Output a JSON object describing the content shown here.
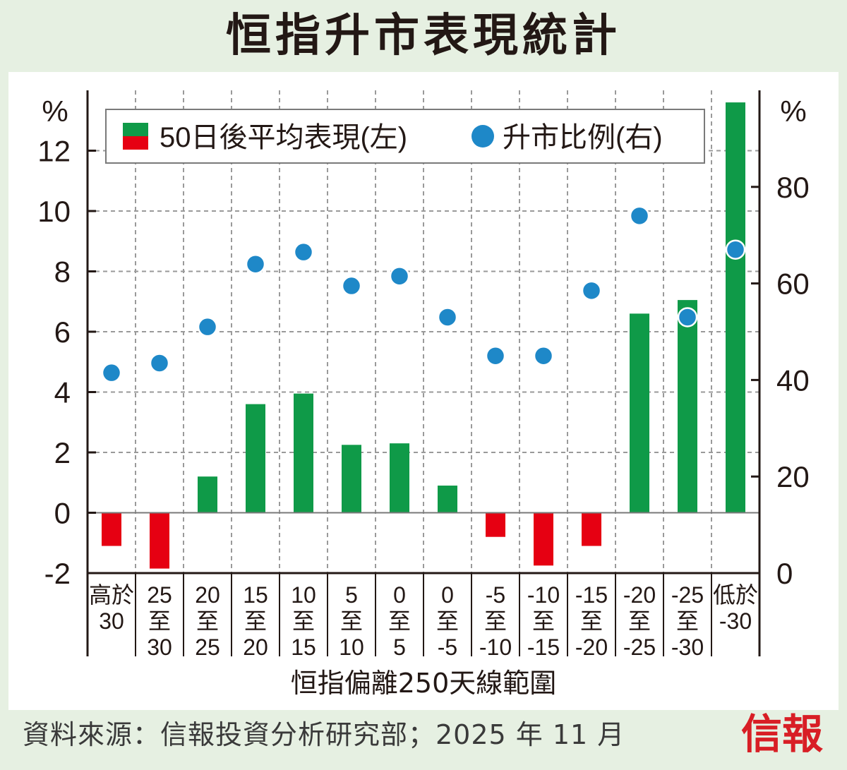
{
  "title": "恒指升市表現統計",
  "x_title": "恒指偏離250天線範圍",
  "source": "資料來源：信報投資分析研究部；2025 年 11 月",
  "logo": "信報",
  "colors": {
    "positive_bar": "#0f9a48",
    "negative_bar": "#e60012",
    "dot": "#1e88c8",
    "background": "#e6f0e2"
  },
  "chart_data": {
    "type": "bar",
    "left_unit": "%",
    "right_unit": "%",
    "categories": [
      [
        "高於",
        "30"
      ],
      [
        "25",
        "至",
        "30"
      ],
      [
        "20",
        "至",
        "25"
      ],
      [
        "15",
        "至",
        "20"
      ],
      [
        "10",
        "至",
        "15"
      ],
      [
        "5",
        "至",
        "10"
      ],
      [
        "0",
        "至",
        "5"
      ],
      [
        "0",
        "至",
        "-5"
      ],
      [
        "-5",
        "至",
        "-10"
      ],
      [
        "-10",
        "至",
        "-15"
      ],
      [
        "-15",
        "至",
        "-20"
      ],
      [
        "-20",
        "至",
        "-25"
      ],
      [
        "-25",
        "至",
        "-30"
      ],
      [
        "低於",
        "-30"
      ]
    ],
    "series": [
      {
        "name": "50日後平均表現(左)",
        "axis": "left",
        "values": [
          -1.1,
          -1.85,
          1.2,
          3.6,
          3.95,
          2.25,
          2.3,
          0.9,
          -0.8,
          -1.75,
          -1.1,
          6.6,
          7.05,
          13.6
        ]
      },
      {
        "name": "升市比例(右)",
        "axis": "right",
        "values": [
          41.5,
          43.5,
          51.0,
          64.0,
          66.5,
          59.5,
          61.5,
          53.0,
          45.0,
          45.0,
          58.5,
          74.0,
          53.0,
          67.0
        ]
      }
    ],
    "left_axis": {
      "ylim": [
        -2,
        14
      ],
      "ticks": [
        "-2",
        "0",
        "2",
        "4",
        "6",
        "8",
        "10",
        "12"
      ]
    },
    "right_axis": {
      "ylim": [
        0,
        100
      ],
      "ticks": [
        "0",
        "20",
        "40",
        "60",
        "80"
      ]
    },
    "grid": true,
    "legend_position": "top-left"
  }
}
